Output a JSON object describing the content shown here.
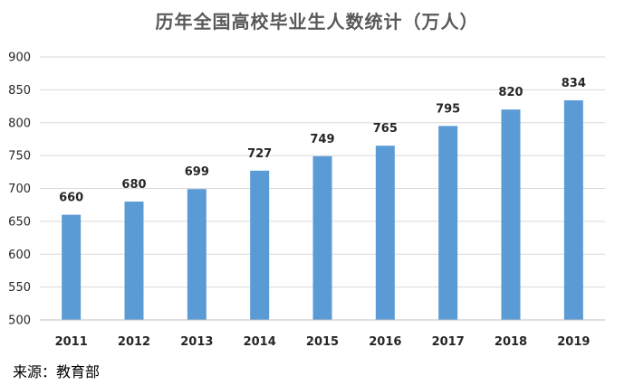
{
  "chart_data": {
    "type": "bar",
    "title": "历年全国高校毕业生人数统计（万人）",
    "categories": [
      "2011",
      "2012",
      "2013",
      "2014",
      "2015",
      "2016",
      "2017",
      "2018",
      "2019"
    ],
    "values": [
      660,
      680,
      699,
      727,
      749,
      765,
      795,
      820,
      834
    ],
    "xlabel": "",
    "ylabel": "",
    "ylim": [
      500,
      900
    ],
    "yticks": [
      500,
      550,
      600,
      650,
      700,
      750,
      800,
      850,
      900
    ],
    "grid": true,
    "legend": "none",
    "bar_color": "#5b9bd5",
    "grid_color": "#d9d9d9"
  },
  "source": "来源：教育部"
}
